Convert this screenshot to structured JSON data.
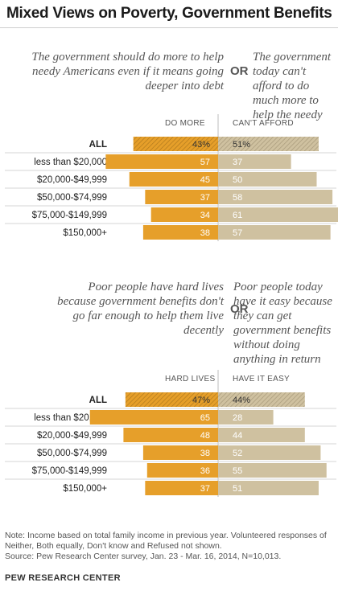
{
  "title": "Mixed Views on Poverty, Government Benefits",
  "colors": {
    "do_more": "#e69f2a",
    "cant_afford": "#cfc1a0",
    "all_hatch_left": "#e69f2a",
    "all_hatch_right": "#cfc1a0",
    "rule": "#d6d6d6"
  },
  "chart_data": [
    {
      "type": "bar",
      "question_left": "The government should do more to help needy Americans even if it means going deeper into debt",
      "or_label": "OR",
      "question_right": "The government today can't afford to do much more to help the needy",
      "categories": [
        "ALL",
        "less than $20,000",
        "$20,000-$49,999",
        "$50,000-$74,999",
        "$75,000-$149,999",
        "$150,000+"
      ],
      "series": [
        {
          "name": "DO MORE",
          "values": [
            43,
            57,
            45,
            37,
            34,
            38
          ]
        },
        {
          "name": "CAN'T AFFORD",
          "values": [
            51,
            37,
            50,
            58,
            61,
            57
          ]
        }
      ],
      "value_labels": [
        [
          "43%",
          "57",
          "45",
          "37",
          "34",
          "38"
        ],
        [
          "51%",
          "37",
          "50",
          "58",
          "61",
          "57"
        ]
      ]
    },
    {
      "type": "bar",
      "question_left": "Poor people have hard lives because government benefits don't go far enough to help them live decently",
      "or_label": "OR",
      "question_right": "Poor people today have it easy because they can get government benefits without doing anything in return",
      "categories": [
        "ALL",
        "less than $20,000",
        "$20,000-$49,999",
        "$50,000-$74,999",
        "$75,000-$149,999",
        "$150,000+"
      ],
      "series": [
        {
          "name": "HARD LIVES",
          "values": [
            47,
            65,
            48,
            38,
            36,
            37
          ]
        },
        {
          "name": "HAVE IT EASY",
          "values": [
            44,
            28,
            44,
            52,
            55,
            51
          ]
        }
      ],
      "value_labels": [
        [
          "47%",
          "65",
          "48",
          "38",
          "36",
          "37"
        ],
        [
          "44%",
          "28",
          "44",
          "52",
          "55",
          "51"
        ]
      ]
    }
  ],
  "note": "Note: Income based on total family income in previous year. Volunteered responses of Neither, Both equally, Don't know and Refused not shown.",
  "source": "Source: Pew Research Center survey, Jan. 23 - Mar. 16, 2014, N=10,013.",
  "brand": "PEW RESEARCH CENTER"
}
